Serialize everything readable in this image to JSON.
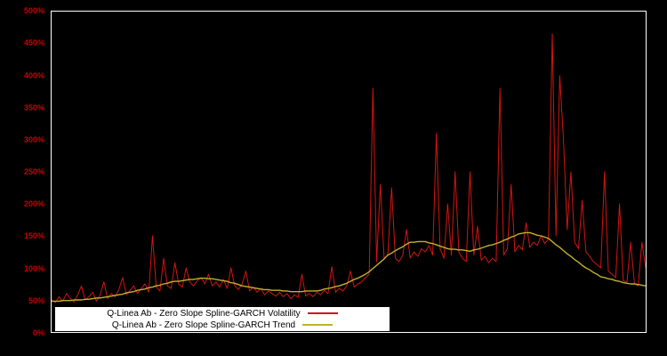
{
  "colors": {
    "background": "#000000",
    "plot_border": "#ffffff",
    "axis_label": "#cc0000",
    "legend_bg": "#ffffff",
    "legend_text": "#000000",
    "volatility_line": "#d41414",
    "trend_line": "#c0b22a"
  },
  "chart_data": {
    "type": "line",
    "title": "",
    "xlabel": "",
    "ylabel": "",
    "ylim": [
      0,
      500
    ],
    "grid": false,
    "legend_position": "bottom-left inside plot, white box",
    "y_tick_labels": [
      "500%",
      "450%",
      "400%",
      "350%",
      "300%",
      "250%",
      "200%",
      "150%",
      "100%",
      "50%",
      "0%"
    ],
    "x_tick_labels": [],
    "series": [
      {
        "name": "Q-Linea Ab - Zero Slope Spline-GARCH Volatility",
        "color": "#d41414",
        "stroke_width": 1,
        "values": [
          50,
          46,
          55,
          48,
          60,
          52,
          47,
          58,
          72,
          50,
          55,
          62,
          48,
          58,
          78,
          52,
          60,
          55,
          66,
          85,
          58,
          65,
          72,
          60,
          68,
          75,
          62,
          150,
          70,
          64,
          115,
          72,
          68,
          108,
          75,
          70,
          100,
          78,
          72,
          80,
          85,
          75,
          90,
          72,
          78,
          70,
          82,
          68,
          100,
          72,
          66,
          75,
          95,
          64,
          70,
          62,
          68,
          58,
          64,
          60,
          56,
          62,
          55,
          60,
          52,
          58,
          54,
          90,
          56,
          60,
          55,
          62,
          58,
          65,
          60,
          102,
          62,
          68,
          64,
          72,
          95,
          70,
          75,
          78,
          85,
          90,
          380,
          110,
          230,
          115,
          120,
          225,
          115,
          110,
          120,
          160,
          115,
          125,
          118,
          130,
          125,
          135,
          120,
          310,
          130,
          115,
          200,
          120,
          250,
          125,
          115,
          110,
          250,
          120,
          165,
          112,
          118,
          108,
          115,
          110,
          380,
          120,
          130,
          230,
          125,
          135,
          128,
          170,
          132,
          140,
          135,
          150,
          138,
          145,
          465,
          150,
          400,
          300,
          160,
          250,
          140,
          130,
          205,
          125,
          118,
          110,
          105,
          100,
          250,
          95,
          90,
          85,
          200,
          80,
          78,
          140,
          75,
          72,
          140,
          100
        ]
      },
      {
        "name": "Q-Linea Ab - Zero Slope Spline-GARCH Trend",
        "color": "#c0b22a",
        "stroke_width": 1.4,
        "values": [
          48,
          48,
          48,
          49,
          49,
          49,
          50,
          50,
          50,
          51,
          51,
          52,
          53,
          53,
          54,
          55,
          56,
          57,
          58,
          59,
          61,
          62,
          63,
          65,
          66,
          67,
          69,
          70,
          72,
          73,
          75,
          76,
          78,
          79,
          79,
          80,
          81,
          82,
          82,
          83,
          84,
          84,
          83,
          83,
          82,
          81,
          80,
          79,
          77,
          76,
          74,
          72,
          71,
          70,
          69,
          68,
          67,
          66,
          66,
          65,
          65,
          65,
          64,
          64,
          63,
          63,
          63,
          63,
          64,
          64,
          64,
          64,
          65,
          67,
          68,
          69,
          71,
          72,
          74,
          76,
          79,
          82,
          84,
          87,
          90,
          94,
          99,
          104,
          109,
          114,
          120,
          123,
          127,
          130,
          133,
          137,
          140,
          140,
          141,
          141,
          141,
          139,
          138,
          136,
          134,
          132,
          130,
          129,
          129,
          128,
          128,
          127,
          126,
          128,
          129,
          131,
          133,
          135,
          136,
          138,
          140,
          143,
          145,
          148,
          150,
          153,
          154,
          155,
          155,
          153,
          151,
          150,
          148,
          146,
          141,
          136,
          132,
          127,
          122,
          118,
          113,
          109,
          104,
          100,
          97,
          93,
          90,
          86,
          85,
          83,
          82,
          80,
          79,
          77,
          76,
          75,
          75,
          74,
          73,
          72
        ]
      }
    ]
  }
}
